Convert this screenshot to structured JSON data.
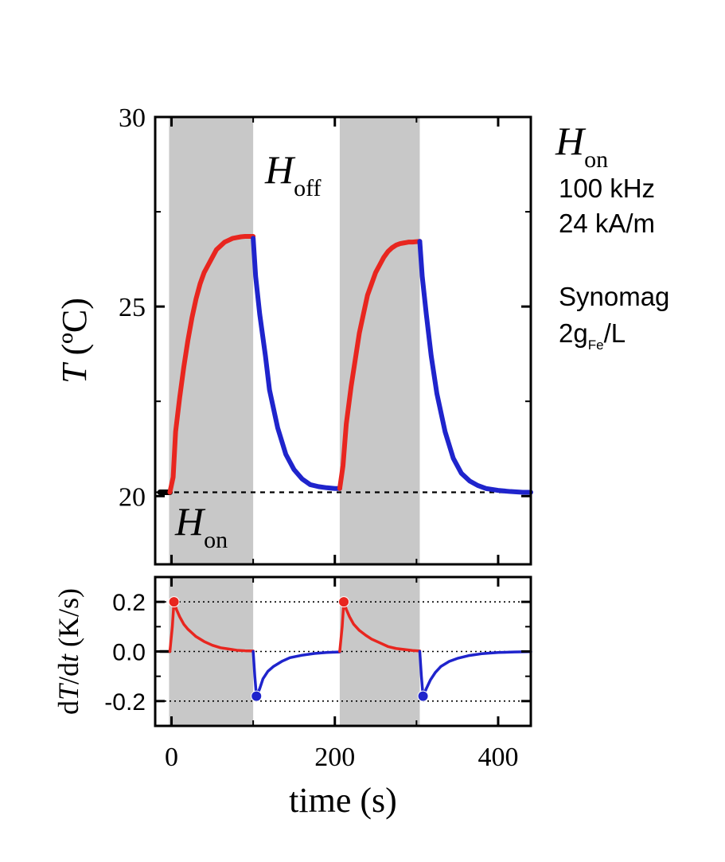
{
  "chart_data": [
    {
      "type": "line",
      "panel": "top",
      "ylabel": {
        "var": "T",
        "unit": " (ºC)"
      },
      "ylim": [
        18.2,
        30
      ],
      "yticks": [
        20,
        25,
        30
      ],
      "xlim": [
        -20,
        440
      ],
      "shaded_intervals": [
        [
          -3,
          100
        ],
        [
          206,
          304
        ]
      ],
      "reference_line": 20.1,
      "annotations": [
        {
          "main": "H",
          "sub": "off"
        },
        {
          "main": "H",
          "sub": "on"
        }
      ],
      "series": [
        {
          "color": "#000000",
          "x": [
            -14,
            -2
          ],
          "y": [
            20.1,
            20.1
          ]
        },
        {
          "color": "#e8261f",
          "x": [
            -2,
            2,
            5,
            10,
            15,
            20,
            25,
            30,
            35,
            40,
            45,
            50,
            55,
            60,
            65,
            70,
            75,
            80,
            85,
            90,
            95,
            100
          ],
          "y": [
            20.1,
            20.5,
            21.7,
            22.6,
            23.4,
            24.1,
            24.7,
            25.2,
            25.6,
            25.9,
            26.1,
            26.3,
            26.5,
            26.6,
            26.7,
            26.75,
            26.8,
            26.82,
            26.84,
            26.85,
            26.85,
            26.85
          ]
        },
        {
          "color": "#1f24cc",
          "x": [
            100,
            103,
            108,
            115,
            120,
            130,
            140,
            150,
            160,
            170,
            180,
            190,
            200,
            206
          ],
          "y": [
            26.8,
            25.8,
            24.8,
            23.7,
            22.8,
            21.8,
            21.1,
            20.7,
            20.45,
            20.3,
            20.25,
            20.22,
            20.2,
            20.2
          ]
        },
        {
          "color": "#e8261f",
          "x": [
            206,
            210,
            214,
            220,
            225,
            230,
            235,
            240,
            245,
            250,
            255,
            260,
            265,
            270,
            275,
            280,
            285,
            290,
            295,
            304
          ],
          "y": [
            20.2,
            20.8,
            21.9,
            22.9,
            23.6,
            24.3,
            24.8,
            25.3,
            25.6,
            25.9,
            26.1,
            26.3,
            26.45,
            26.55,
            26.62,
            26.66,
            26.68,
            26.7,
            26.7,
            26.72
          ]
        },
        {
          "color": "#1f24cc",
          "x": [
            304,
            307,
            312,
            318,
            325,
            335,
            345,
            355,
            365,
            375,
            385,
            400,
            415,
            430,
            440
          ],
          "y": [
            26.72,
            25.8,
            24.8,
            23.7,
            22.7,
            21.7,
            21.0,
            20.6,
            20.4,
            20.28,
            20.2,
            20.15,
            20.12,
            20.1,
            20.1
          ]
        }
      ]
    },
    {
      "type": "line",
      "panel": "bottom",
      "ylabel": {
        "pre": "d",
        "var": "T",
        "mid": "/d",
        "var2": "t",
        "unit": " (K/s)"
      },
      "ylim": [
        -0.3,
        0.3
      ],
      "yticks": [
        0.2,
        0.0,
        -0.2
      ],
      "ytick_labels": [
        "0.2",
        "0.0",
        "-0.2"
      ],
      "xlim": [
        -20,
        440
      ],
      "xticks": [
        0,
        200,
        400
      ],
      "xtick_labels": [
        "0",
        "200",
        "400"
      ],
      "xlabel": "time (s)",
      "shaded_intervals": [
        [
          -3,
          100
        ],
        [
          206,
          304
        ]
      ],
      "reference_lines": [
        0.2,
        0.0,
        -0.2
      ],
      "series": [
        {
          "color": "#000000",
          "x": [
            -14,
            -2
          ],
          "y": [
            0,
            0
          ]
        },
        {
          "color": "#e8261f",
          "x": [
            -2,
            1,
            3,
            6,
            10,
            15,
            20,
            25,
            30,
            40,
            50,
            60,
            70,
            80,
            90,
            100
          ],
          "y": [
            0,
            0.1,
            0.2,
            0.17,
            0.14,
            0.11,
            0.09,
            0.075,
            0.06,
            0.04,
            0.025,
            0.015,
            0.01,
            0.005,
            0.003,
            0.002
          ]
        },
        {
          "color": "#1f24cc",
          "x": [
            100,
            102,
            104,
            108,
            112,
            118,
            125,
            135,
            145,
            160,
            175,
            190,
            206
          ],
          "y": [
            0,
            -0.1,
            -0.18,
            -0.15,
            -0.11,
            -0.08,
            -0.06,
            -0.04,
            -0.025,
            -0.015,
            -0.008,
            -0.004,
            -0.002
          ]
        },
        {
          "color": "#e8261f",
          "x": [
            206,
            209,
            211,
            214,
            218,
            223,
            230,
            238,
            245,
            255,
            265,
            275,
            285,
            295,
            304
          ],
          "y": [
            0,
            0.1,
            0.2,
            0.17,
            0.14,
            0.11,
            0.085,
            0.065,
            0.05,
            0.035,
            0.02,
            0.012,
            0.008,
            0.004,
            0.002
          ]
        },
        {
          "color": "#1f24cc",
          "x": [
            304,
            306,
            308,
            312,
            317,
            323,
            330,
            340,
            350,
            365,
            380,
            400,
            420,
            440
          ],
          "y": [
            0,
            -0.1,
            -0.18,
            -0.15,
            -0.115,
            -0.085,
            -0.06,
            -0.04,
            -0.028,
            -0.016,
            -0.009,
            -0.004,
            -0.002,
            -0.001
          ]
        }
      ],
      "peak_markers": [
        {
          "color": "#e8261f",
          "x": 3,
          "y": 0.2
        },
        {
          "color": "#1f24cc",
          "x": 104,
          "y": -0.18
        },
        {
          "color": "#e8261f",
          "x": 211,
          "y": 0.2
        },
        {
          "color": "#1f24cc",
          "x": 308,
          "y": -0.18
        }
      ]
    }
  ],
  "legend_panel": {
    "title_main": "H",
    "title_sub": "on",
    "frequency": "100 kHz",
    "field": "24 kA/m",
    "material": "Synomag",
    "concentration_value": "2g",
    "concentration_sub": "Fe",
    "concentration_unit": "/L"
  }
}
